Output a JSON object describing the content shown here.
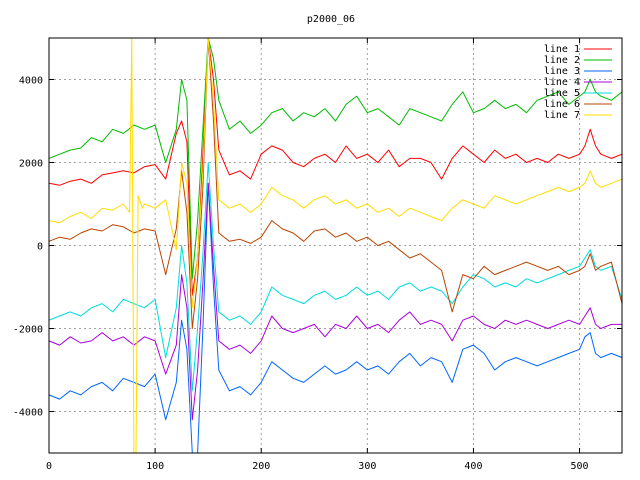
{
  "chart_data": {
    "type": "line",
    "title": "p2000_06",
    "xlabel": "",
    "ylabel": "",
    "xlim": [
      0,
      540
    ],
    "ylim": [
      -5000,
      5000
    ],
    "x_ticks": [
      0,
      100,
      200,
      300,
      400,
      500
    ],
    "y_ticks": [
      -4000,
      -2000,
      0,
      2000,
      4000
    ],
    "grid": true,
    "legend_position": "top-right",
    "series": [
      {
        "name": "line 1",
        "color": "#ff0000",
        "x": [
          0,
          10,
          20,
          30,
          40,
          50,
          60,
          70,
          80,
          90,
          100,
          110,
          120,
          125,
          130,
          135,
          140,
          145,
          150,
          155,
          160,
          170,
          180,
          190,
          200,
          210,
          220,
          230,
          240,
          250,
          260,
          270,
          280,
          290,
          300,
          310,
          320,
          330,
          340,
          350,
          360,
          370,
          380,
          390,
          400,
          410,
          420,
          430,
          440,
          450,
          460,
          470,
          480,
          490,
          500,
          505,
          510,
          515,
          520,
          530,
          540
        ],
        "y": [
          1500,
          1450,
          1550,
          1600,
          1500,
          1700,
          1750,
          1800,
          1750,
          1900,
          1950,
          1600,
          2700,
          3000,
          2500,
          -1200,
          -300,
          2200,
          5000,
          4000,
          2300,
          1700,
          1800,
          1600,
          2200,
          2400,
          2300,
          2000,
          1900,
          2100,
          2200,
          2000,
          2400,
          2100,
          2200,
          2000,
          2300,
          1900,
          2100,
          2100,
          2000,
          1600,
          2100,
          2400,
          2200,
          2000,
          2300,
          2100,
          2200,
          2000,
          2100,
          2000,
          2200,
          2100,
          2200,
          2400,
          2800,
          2400,
          2200,
          2100,
          2200
        ]
      },
      {
        "name": "line 2",
        "color": "#00bb00",
        "x": [
          0,
          10,
          20,
          30,
          40,
          50,
          60,
          70,
          80,
          90,
          100,
          110,
          120,
          125,
          130,
          135,
          140,
          145,
          150,
          155,
          160,
          170,
          180,
          190,
          200,
          210,
          220,
          230,
          240,
          250,
          260,
          270,
          280,
          290,
          300,
          310,
          320,
          330,
          340,
          350,
          360,
          370,
          380,
          390,
          400,
          410,
          420,
          430,
          440,
          450,
          460,
          470,
          480,
          490,
          500,
          505,
          510,
          515,
          520,
          530,
          540
        ],
        "y": [
          2100,
          2200,
          2300,
          2350,
          2600,
          2500,
          2800,
          2700,
          2900,
          2800,
          2900,
          2000,
          2800,
          4000,
          3500,
          -800,
          600,
          2800,
          5000,
          4500,
          3500,
          2800,
          3000,
          2700,
          2900,
          3200,
          3300,
          3000,
          3200,
          3100,
          3300,
          3000,
          3400,
          3600,
          3200,
          3300,
          3100,
          2900,
          3300,
          3200,
          3100,
          3000,
          3400,
          3700,
          3200,
          3300,
          3500,
          3300,
          3400,
          3200,
          3500,
          3600,
          3700,
          3400,
          3600,
          3700,
          4000,
          3700,
          3600,
          3500,
          3700
        ]
      },
      {
        "name": "line 3",
        "color": "#0066ff",
        "x": [
          0,
          10,
          20,
          30,
          40,
          50,
          60,
          70,
          80,
          90,
          100,
          110,
          120,
          125,
          130,
          135,
          140,
          145,
          150,
          155,
          160,
          170,
          180,
          190,
          200,
          210,
          220,
          230,
          240,
          250,
          260,
          270,
          280,
          290,
          300,
          310,
          320,
          330,
          340,
          350,
          360,
          370,
          380,
          390,
          400,
          410,
          420,
          430,
          440,
          450,
          460,
          470,
          480,
          490,
          500,
          505,
          510,
          515,
          520,
          530,
          540
        ],
        "y": [
          -3600,
          -3700,
          -3500,
          -3600,
          -3400,
          -3300,
          -3500,
          -3200,
          -3300,
          -3400,
          -3100,
          -4200,
          -3300,
          -1800,
          -2500,
          -5000,
          -5000,
          -2000,
          1500,
          -1000,
          -3000,
          -3500,
          -3400,
          -3600,
          -3300,
          -2800,
          -3000,
          -3200,
          -3300,
          -3100,
          -2900,
          -3100,
          -3000,
          -2800,
          -3000,
          -2900,
          -3100,
          -2800,
          -2600,
          -2900,
          -2700,
          -2800,
          -3300,
          -2500,
          -2400,
          -2600,
          -3000,
          -2800,
          -2700,
          -2800,
          -2900,
          -2800,
          -2700,
          -2600,
          -2500,
          -2200,
          -2100,
          -2600,
          -2700,
          -2600,
          -2700
        ]
      },
      {
        "name": "line 4",
        "color": "#aa00dd",
        "x": [
          0,
          10,
          20,
          30,
          40,
          50,
          60,
          70,
          80,
          90,
          100,
          110,
          120,
          125,
          130,
          135,
          140,
          145,
          150,
          155,
          160,
          170,
          180,
          190,
          200,
          210,
          220,
          230,
          240,
          250,
          260,
          270,
          280,
          290,
          300,
          310,
          320,
          330,
          340,
          350,
          360,
          370,
          380,
          390,
          400,
          410,
          420,
          430,
          440,
          450,
          460,
          470,
          480,
          490,
          500,
          505,
          510,
          515,
          520,
          530,
          540
        ],
        "y": [
          -2300,
          -2400,
          -2200,
          -2350,
          -2300,
          -2100,
          -2300,
          -2200,
          -2400,
          -2200,
          -2300,
          -3100,
          -2400,
          -700,
          -1500,
          -4200,
          -3000,
          -900,
          1500,
          -500,
          -2300,
          -2500,
          -2400,
          -2600,
          -2300,
          -1700,
          -2000,
          -2100,
          -2000,
          -1900,
          -2200,
          -1900,
          -2000,
          -1700,
          -2000,
          -1900,
          -2100,
          -1800,
          -1600,
          -1900,
          -1800,
          -1900,
          -2300,
          -1800,
          -1700,
          -1900,
          -2000,
          -1800,
          -1900,
          -1800,
          -1900,
          -2000,
          -1900,
          -1800,
          -1900,
          -1700,
          -1500,
          -1900,
          -2000,
          -1900,
          -1900
        ]
      },
      {
        "name": "line 5",
        "color": "#00dddd",
        "x": [
          0,
          10,
          20,
          30,
          40,
          50,
          60,
          70,
          80,
          90,
          100,
          110,
          120,
          125,
          130,
          135,
          140,
          145,
          150,
          155,
          160,
          170,
          180,
          190,
          200,
          210,
          220,
          230,
          240,
          250,
          260,
          270,
          280,
          290,
          300,
          310,
          320,
          330,
          340,
          350,
          360,
          370,
          380,
          390,
          400,
          410,
          420,
          430,
          440,
          450,
          460,
          470,
          480,
          490,
          500,
          505,
          510,
          515,
          520,
          530,
          540
        ],
        "y": [
          -1800,
          -1700,
          -1600,
          -1700,
          -1500,
          -1400,
          -1600,
          -1300,
          -1400,
          -1500,
          -1300,
          -2700,
          -1500,
          0,
          -900,
          -3500,
          -2000,
          -200,
          2000,
          0,
          -1600,
          -1800,
          -1700,
          -1900,
          -1600,
          -1000,
          -1200,
          -1300,
          -1400,
          -1200,
          -1100,
          -1300,
          -1200,
          -1000,
          -1200,
          -1100,
          -1300,
          -1000,
          -900,
          -1100,
          -1000,
          -1100,
          -1400,
          -1000,
          -700,
          -800,
          -1000,
          -900,
          -1000,
          -800,
          -900,
          -800,
          -700,
          -600,
          -500,
          -300,
          -100,
          -500,
          -600,
          -500,
          -1300
        ]
      },
      {
        "name": "line 6",
        "color": "#bb4400",
        "x": [
          0,
          10,
          20,
          30,
          40,
          50,
          60,
          70,
          80,
          90,
          100,
          110,
          120,
          125,
          130,
          135,
          140,
          145,
          150,
          155,
          160,
          170,
          180,
          190,
          200,
          210,
          220,
          230,
          240,
          250,
          260,
          270,
          280,
          290,
          300,
          310,
          320,
          330,
          340,
          350,
          360,
          370,
          380,
          390,
          400,
          410,
          420,
          430,
          440,
          450,
          460,
          470,
          480,
          490,
          500,
          505,
          510,
          515,
          520,
          530,
          540
        ],
        "y": [
          100,
          200,
          150,
          300,
          400,
          350,
          500,
          450,
          300,
          400,
          350,
          -700,
          400,
          1800,
          800,
          -2000,
          -800,
          1400,
          5000,
          3000,
          300,
          100,
          150,
          50,
          200,
          600,
          400,
          300,
          100,
          350,
          400,
          200,
          300,
          100,
          200,
          0,
          100,
          -100,
          -300,
          -200,
          -400,
          -600,
          -1600,
          -700,
          -800,
          -500,
          -700,
          -600,
          -500,
          -400,
          -500,
          -600,
          -500,
          -700,
          -600,
          -500,
          -200,
          -600,
          -500,
          -400,
          -1400
        ]
      },
      {
        "name": "line 7",
        "color": "#ffdd00",
        "x": [
          0,
          10,
          20,
          30,
          40,
          50,
          60,
          70,
          76,
          78,
          80,
          82,
          84,
          88,
          90,
          100,
          110,
          120,
          125,
          130,
          135,
          140,
          145,
          150,
          155,
          160,
          170,
          180,
          190,
          200,
          210,
          220,
          230,
          240,
          250,
          260,
          270,
          280,
          290,
          300,
          310,
          320,
          330,
          340,
          350,
          360,
          370,
          380,
          390,
          400,
          410,
          420,
          430,
          440,
          450,
          460,
          470,
          480,
          490,
          500,
          505,
          510,
          515,
          520,
          530,
          540
        ],
        "y": [
          600,
          550,
          700,
          800,
          650,
          900,
          850,
          1000,
          800,
          5000,
          -5000,
          -5000,
          1200,
          900,
          1000,
          900,
          1100,
          -100,
          2000,
          1500,
          -1500,
          -300,
          1800,
          5000,
          3500,
          1100,
          900,
          1000,
          800,
          1000,
          1400,
          1200,
          1100,
          900,
          1100,
          1200,
          1000,
          1100,
          900,
          1000,
          800,
          900,
          700,
          900,
          800,
          700,
          600,
          900,
          1100,
          1000,
          900,
          1200,
          1100,
          1000,
          1100,
          1200,
          1300,
          1400,
          1300,
          1400,
          1500,
          1800,
          1500,
          1400,
          1500,
          1600
        ]
      }
    ]
  }
}
